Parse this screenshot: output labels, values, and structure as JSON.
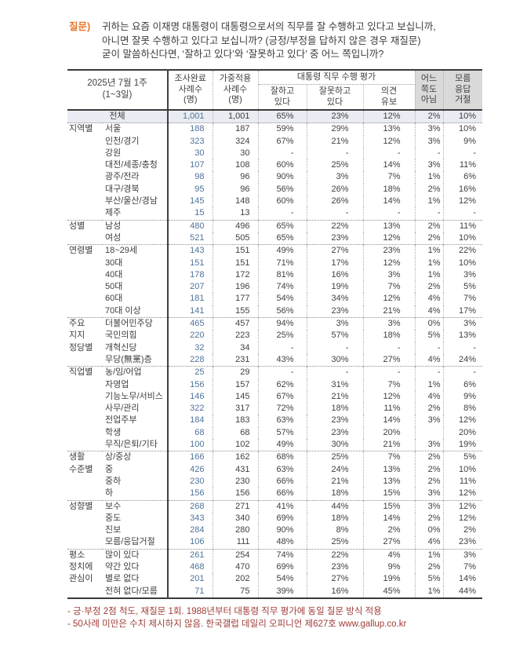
{
  "question": {
    "label": "질문)",
    "lines": [
      "귀하는 요즘 이재명 대통령이 대통령으로서의 직무를 잘 수행하고 있다고 보십니까,",
      "아니면 잘못 수행하고 있다고 보십니까? (긍정/부정을 답하지 않은 경우 재질문)",
      "굳이 말씀하신다면, ‘잘하고 있다’와 ‘잘못하고 있다’ 중 어느 쪽입니까?"
    ]
  },
  "table": {
    "period": [
      "2025년 7월 1주",
      "(1~3일)"
    ],
    "headers": {
      "completed": [
        "조사완료",
        "사례수",
        "(명)"
      ],
      "weighted": [
        "가중적용",
        "사례수",
        "(명)"
      ],
      "eval_group": "대통령 직무 수행 평가",
      "approve": [
        "잘하고",
        "있다"
      ],
      "disapprove": [
        "잘못하고",
        "있다"
      ],
      "reserved": [
        "의견",
        "유보"
      ],
      "neither": [
        "어느",
        "쪽도",
        "아님"
      ],
      "refused": [
        "모름",
        "응답",
        "거절"
      ]
    },
    "total": {
      "label": "전체",
      "completed": "1,001",
      "weighted": "1,001",
      "values": [
        "65%",
        "23%",
        "12%",
        "2%",
        "10%"
      ]
    },
    "groups": [
      {
        "name": "지역별",
        "name_lines": [
          "지역별"
        ],
        "rows": [
          {
            "label": "서울",
            "completed": "188",
            "weighted": "187",
            "values": [
              "59%",
              "29%",
              "13%",
              "3%",
              "10%"
            ]
          },
          {
            "label": "인천/경기",
            "completed": "323",
            "weighted": "324",
            "values": [
              "67%",
              "21%",
              "12%",
              "3%",
              "9%"
            ]
          },
          {
            "label": "강원",
            "completed": "30",
            "weighted": "30",
            "values": [
              "-",
              "-",
              "-",
              "-",
              "-"
            ]
          },
          {
            "label": "대전/세종/충청",
            "completed": "107",
            "weighted": "108",
            "values": [
              "60%",
              "25%",
              "14%",
              "3%",
              "11%"
            ]
          },
          {
            "label": "광주/전라",
            "completed": "98",
            "weighted": "96",
            "values": [
              "90%",
              "3%",
              "7%",
              "1%",
              "6%"
            ]
          },
          {
            "label": "대구/경북",
            "completed": "95",
            "weighted": "96",
            "values": [
              "56%",
              "26%",
              "18%",
              "2%",
              "16%"
            ]
          },
          {
            "label": "부산/울산/경남",
            "completed": "145",
            "weighted": "148",
            "values": [
              "60%",
              "26%",
              "14%",
              "1%",
              "12%"
            ]
          },
          {
            "label": "제주",
            "completed": "15",
            "weighted": "13",
            "values": [
              "-",
              "-",
              "-",
              "-",
              "-"
            ]
          }
        ]
      },
      {
        "name": "성별",
        "name_lines": [
          "성별"
        ],
        "rows": [
          {
            "label": "남성",
            "completed": "480",
            "weighted": "496",
            "values": [
              "65%",
              "22%",
              "13%",
              "2%",
              "11%"
            ]
          },
          {
            "label": "여성",
            "completed": "521",
            "weighted": "505",
            "values": [
              "65%",
              "23%",
              "12%",
              "2%",
              "10%"
            ]
          }
        ]
      },
      {
        "name": "연령별",
        "name_lines": [
          "연령별"
        ],
        "rows": [
          {
            "label": "18~29세",
            "completed": "143",
            "weighted": "151",
            "values": [
              "49%",
              "27%",
              "23%",
              "1%",
              "22%"
            ]
          },
          {
            "label": "30대",
            "completed": "151",
            "weighted": "151",
            "values": [
              "71%",
              "17%",
              "12%",
              "1%",
              "10%"
            ]
          },
          {
            "label": "40대",
            "completed": "178",
            "weighted": "172",
            "values": [
              "81%",
              "16%",
              "3%",
              "1%",
              "3%"
            ]
          },
          {
            "label": "50대",
            "completed": "207",
            "weighted": "196",
            "values": [
              "74%",
              "19%",
              "7%",
              "2%",
              "5%"
            ]
          },
          {
            "label": "60대",
            "completed": "181",
            "weighted": "177",
            "values": [
              "54%",
              "34%",
              "12%",
              "4%",
              "7%"
            ]
          },
          {
            "label": "70대 이상",
            "completed": "141",
            "weighted": "155",
            "values": [
              "56%",
              "23%",
              "21%",
              "4%",
              "17%"
            ]
          }
        ]
      },
      {
        "name": "주요 지지 정당별",
        "name_lines": [
          "주요",
          "지지",
          "정당별"
        ],
        "rows": [
          {
            "label": "더불어민주당",
            "completed": "465",
            "weighted": "457",
            "values": [
              "94%",
              "3%",
              "3%",
              "0%",
              "3%"
            ]
          },
          {
            "label": "국민의힘",
            "completed": "220",
            "weighted": "223",
            "values": [
              "25%",
              "57%",
              "18%",
              "5%",
              "13%"
            ]
          },
          {
            "label": "개혁신당",
            "completed": "32",
            "weighted": "34",
            "values": [
              "-",
              "-",
              "-",
              "-",
              "-"
            ]
          },
          {
            "label": "무당(無黨)층",
            "completed": "228",
            "weighted": "231",
            "values": [
              "43%",
              "30%",
              "27%",
              "4%",
              "24%"
            ]
          }
        ]
      },
      {
        "name": "직업별",
        "name_lines": [
          "직업별"
        ],
        "rows": [
          {
            "label": "농/임/어업",
            "completed": "25",
            "weighted": "29",
            "values": [
              "-",
              "-",
              "-",
              "-",
              "-"
            ]
          },
          {
            "label": "자영업",
            "completed": "156",
            "weighted": "157",
            "values": [
              "62%",
              "31%",
              "7%",
              "1%",
              "6%"
            ]
          },
          {
            "label": "기능노무/서비스",
            "completed": "146",
            "weighted": "145",
            "values": [
              "67%",
              "21%",
              "12%",
              "4%",
              "9%"
            ]
          },
          {
            "label": "사무/관리",
            "completed": "322",
            "weighted": "317",
            "values": [
              "72%",
              "18%",
              "11%",
              "2%",
              "8%"
            ]
          },
          {
            "label": "전업주부",
            "completed": "184",
            "weighted": "183",
            "values": [
              "63%",
              "23%",
              "14%",
              "3%",
              "12%"
            ]
          },
          {
            "label": "학생",
            "completed": "68",
            "weighted": "68",
            "values": [
              "57%",
              "23%",
              "20%",
              "",
              "20%"
            ]
          },
          {
            "label": "무직/은퇴/기타",
            "completed": "100",
            "weighted": "102",
            "values": [
              "49%",
              "30%",
              "21%",
              "3%",
              "19%"
            ]
          }
        ]
      },
      {
        "name": "생활수준별",
        "name_lines": [
          "생활",
          "수준별"
        ],
        "rows": [
          {
            "label": "상/중상",
            "completed": "166",
            "weighted": "162",
            "values": [
              "68%",
              "25%",
              "7%",
              "2%",
              "5%"
            ]
          },
          {
            "label": "중",
            "completed": "426",
            "weighted": "431",
            "values": [
              "63%",
              "24%",
              "13%",
              "2%",
              "10%"
            ]
          },
          {
            "label": "중하",
            "completed": "230",
            "weighted": "230",
            "values": [
              "66%",
              "21%",
              "13%",
              "2%",
              "11%"
            ]
          },
          {
            "label": "하",
            "completed": "156",
            "weighted": "156",
            "values": [
              "66%",
              "18%",
              "15%",
              "3%",
              "12%"
            ]
          }
        ]
      },
      {
        "name": "성향별",
        "name_lines": [
          "성향별"
        ],
        "rows": [
          {
            "label": "보수",
            "completed": "268",
            "weighted": "271",
            "values": [
              "41%",
              "44%",
              "15%",
              "3%",
              "12%"
            ]
          },
          {
            "label": "중도",
            "completed": "343",
            "weighted": "340",
            "values": [
              "69%",
              "18%",
              "14%",
              "2%",
              "12%"
            ]
          },
          {
            "label": "진보",
            "completed": "284",
            "weighted": "280",
            "values": [
              "90%",
              "8%",
              "2%",
              "0%",
              "2%"
            ]
          },
          {
            "label": "모름/응답거절",
            "completed": "106",
            "weighted": "111",
            "values": [
              "48%",
              "25%",
              "27%",
              "4%",
              "23%"
            ]
          }
        ]
      },
      {
        "name": "평소 정치에 관심이",
        "name_lines": [
          "평소",
          "정치에",
          "관심이"
        ],
        "rows": [
          {
            "label": "많이 있다",
            "completed": "261",
            "weighted": "254",
            "values": [
              "74%",
              "22%",
              "4%",
              "1%",
              "3%"
            ]
          },
          {
            "label": "약간 있다",
            "completed": "468",
            "weighted": "470",
            "values": [
              "69%",
              "23%",
              "9%",
              "2%",
              "7%"
            ]
          },
          {
            "label": "별로 없다",
            "completed": "201",
            "weighted": "202",
            "values": [
              "54%",
              "27%",
              "19%",
              "5%",
              "14%"
            ]
          },
          {
            "label": "전혀 없다/모름",
            "completed": "71",
            "weighted": "75",
            "values": [
              "39%",
              "16%",
              "45%",
              "1%",
              "44%"
            ]
          }
        ]
      }
    ],
    "footnotes": [
      "- 긍·부정 2점 척도, 재질문 1회. 1988년부터 대통령 직무 평가에 동일 질문 방식 적용",
      "- 50사례 미만은 수치 제시하지 않음. 한국갤럽 데일리 오피니언 제627호 www.gallup.co.kr"
    ]
  },
  "colors": {
    "question_label": "#e8762c",
    "footnote_text": "#9e3b36",
    "completed_count_text": "#4f729b",
    "header_shaded_bg": "#d9d9d9",
    "total_row_bg": "#e9ecf2",
    "table_border": "#3a3a3a"
  }
}
